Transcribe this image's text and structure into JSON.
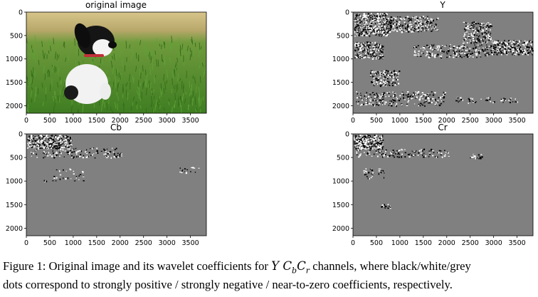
{
  "panels": [
    {
      "id": "original",
      "title": "original image",
      "kind": "photo"
    },
    {
      "id": "y",
      "title": "Y",
      "kind": "coeff"
    },
    {
      "id": "cb",
      "title": "Cb",
      "kind": "coeff"
    },
    {
      "id": "cr",
      "title": "Cr",
      "kind": "coeff"
    }
  ],
  "axes": {
    "x_ticks": [
      "0",
      "500",
      "1000",
      "1500",
      "2000",
      "2500",
      "3000",
      "3500"
    ],
    "y_ticks": [
      "0",
      "500",
      "1000",
      "1500",
      "2000"
    ],
    "x_range": [
      0,
      3840
    ],
    "y_range": [
      2160,
      0
    ]
  },
  "caption": {
    "prefix": "Figure 1: Original image and its wavelet coefficients for",
    "math_y": "Y C",
    "math_b": "b",
    "math_c": "C",
    "math_r": "r",
    "after_math": "channels, where black/white/grey",
    "line2": "dots correspond to strongly positive / strongly negative / near-to-zero coefficients, respectively."
  },
  "colors": {
    "grey_background": "#808080",
    "grass": "#4f8f2a",
    "sky_blur": "#c8b77a"
  }
}
